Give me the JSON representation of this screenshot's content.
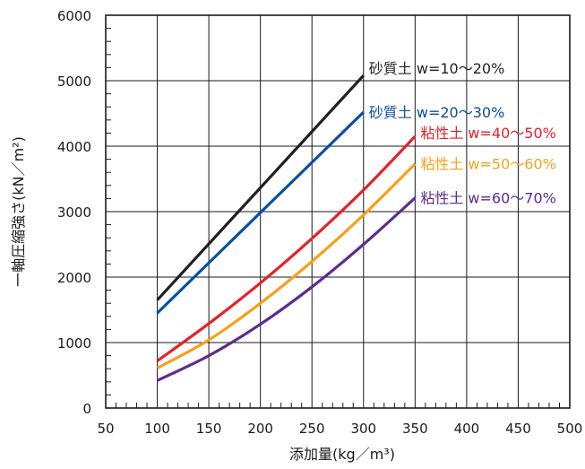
{
  "chart_data": {
    "type": "line",
    "xlabel": "添加量(kg／m³)",
    "ylabel": "一軸圧縮強さ(kN／m²)",
    "xlim": [
      50,
      500
    ],
    "ylim": [
      0,
      6000
    ],
    "x_ticks": [
      "50",
      "100",
      "150",
      "200",
      "250",
      "300",
      "350",
      "400",
      "450",
      "500"
    ],
    "y_ticks": [
      "0",
      "1000",
      "2000",
      "3000",
      "4000",
      "5000",
      "6000"
    ],
    "grid": true,
    "legend": "inline-labels",
    "series": [
      {
        "name": "砂質土 w=10～20%",
        "color": "#231f20",
        "x": [
          100,
          300
        ],
        "y": [
          1650,
          5080
        ]
      },
      {
        "name": "砂質土 w=20～30%",
        "color": "#0a4ea1",
        "x": [
          100,
          300
        ],
        "y": [
          1450,
          4520
        ]
      },
      {
        "name": "粘性土 w=40～50%",
        "color": "#e5212a",
        "x": [
          100,
          150,
          200,
          250,
          300,
          350
        ],
        "y": [
          720,
          1290,
          1910,
          2590,
          3330,
          4150
        ]
      },
      {
        "name": "粘性土 w=50～60%",
        "color": "#f5a11c",
        "x": [
          100,
          150,
          200,
          250,
          300,
          350
        ],
        "y": [
          610,
          1040,
          1600,
          2240,
          2950,
          3730
        ]
      },
      {
        "name": "粘性土 w=60～70%",
        "color": "#5b2c8f",
        "x": [
          100,
          150,
          200,
          250,
          300,
          350
        ],
        "y": [
          420,
          800,
          1280,
          1850,
          2500,
          3210
        ]
      }
    ]
  }
}
